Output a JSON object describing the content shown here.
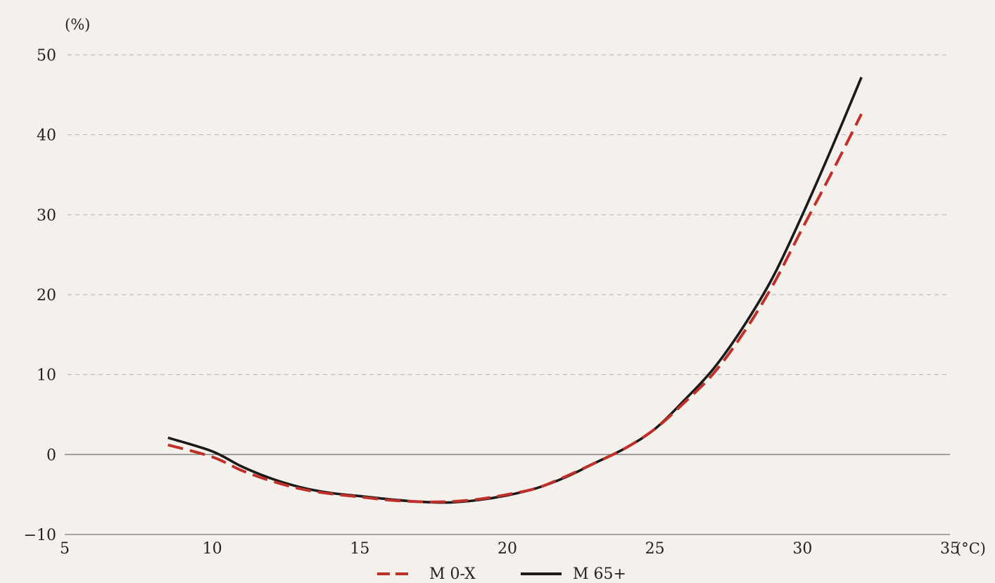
{
  "chart_data": {
    "type": "line",
    "ylabel": "(%)",
    "xlabel": "(°C)",
    "xlim": [
      5,
      35
    ],
    "ylim": [
      -10,
      50
    ],
    "xticks": [
      5,
      10,
      15,
      20,
      25,
      30,
      35
    ],
    "yticks": [
      -10,
      0,
      10,
      20,
      30,
      40,
      50
    ],
    "grid": "horizontal dashed",
    "legend_position": "bottom-center",
    "series": [
      {
        "name": "M 0-X",
        "style": "dashed",
        "color": "#c0302a",
        "x": [
          8.5,
          10,
          11,
          12,
          13,
          14,
          15,
          16,
          17,
          18,
          19,
          20,
          21,
          22,
          23,
          24,
          25,
          26,
          27,
          28,
          29,
          30,
          31,
          32
        ],
        "y": [
          1.2,
          -0.3,
          -2.0,
          -3.3,
          -4.3,
          -4.9,
          -5.3,
          -5.7,
          -5.9,
          -5.9,
          -5.6,
          -5.0,
          -4.2,
          -2.7,
          -1.0,
          0.8,
          3.2,
          6.5,
          10.2,
          15.2,
          21.2,
          28.3,
          35.3,
          42.6
        ]
      },
      {
        "name": "M 65+",
        "style": "solid",
        "color": "#1a1a1a",
        "x": [
          8.5,
          10,
          11,
          12,
          13,
          14,
          15,
          16,
          17,
          18,
          19,
          20,
          21,
          22,
          23,
          24,
          25,
          26,
          27,
          28,
          29,
          30,
          31,
          32
        ],
        "y": [
          2.1,
          0.4,
          -1.5,
          -3.0,
          -4.1,
          -4.8,
          -5.2,
          -5.6,
          -5.9,
          -6.0,
          -5.7,
          -5.1,
          -4.2,
          -2.8,
          -1.0,
          0.8,
          3.2,
          6.8,
          10.8,
          16.0,
          22.2,
          30.0,
          38.4,
          47.2
        ]
      }
    ]
  },
  "colors": {
    "background": "#f4f1ec",
    "grid": "#b5b2ad",
    "axis": "#8a8a8a",
    "text": "#222222"
  }
}
